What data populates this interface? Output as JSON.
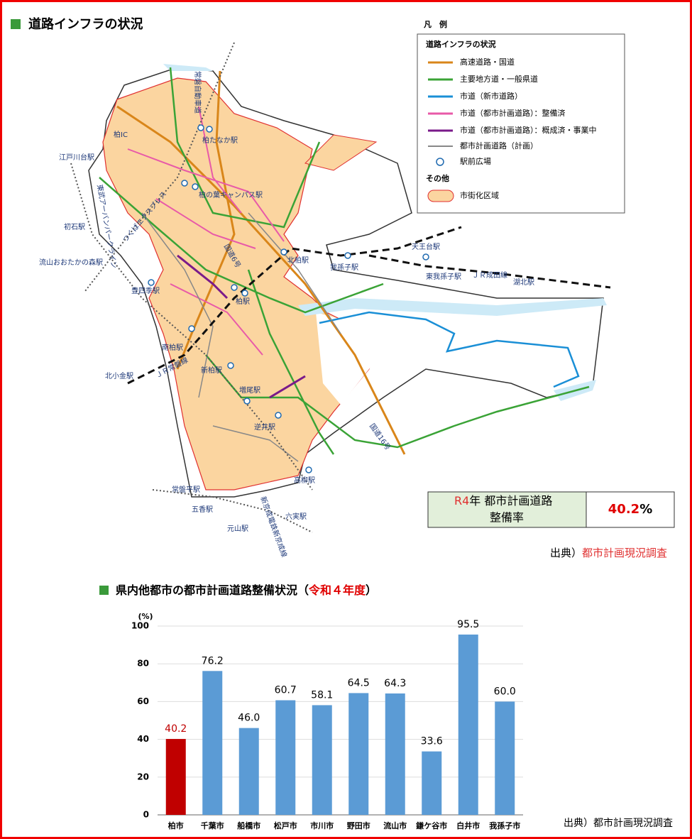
{
  "header": {
    "title": "道路インフラの状況"
  },
  "legend": {
    "title": "凡　例",
    "group1": "道路インフラの状況",
    "items": [
      "高速道路・国道",
      "主要地方道・一般県道",
      "市道（新市道路）",
      "市道（都市計画道路）：整備済",
      "市道（都市計画道路）：概成済・事業中",
      "都市計画道路（計画）",
      "駅前広場"
    ],
    "group2": "その他",
    "area": "市街化区域"
  },
  "map": {
    "labels": [
      "柏たなか駅",
      "柏の葉キャンパス駅",
      "江戸川台駅",
      "初石駅",
      "流山おおたかの森駅",
      "豊四季駅",
      "柏駅",
      "北柏駅",
      "我孫子駅",
      "天王台駅",
      "東我孫子駅",
      "湖北駅",
      "ＪＲ成田線",
      "南柏駅",
      "ＪＲ常磐線",
      "北小金駅",
      "新柏駅",
      "増尾駅",
      "逆井駅",
      "高柳駅",
      "六実駅",
      "五香駅",
      "元山駅",
      "常盤平駅",
      "国道16号",
      "柏IC",
      "常磐自動車道",
      "国道6号",
      "つくばエクスプレス",
      "東武アーバンパークライン",
      "新京成電鉄新京成線"
    ]
  },
  "info": {
    "year": "R4",
    "label1": "年 都市計画道路",
    "label2": "整備率",
    "value": "40.2",
    "unit": "%"
  },
  "source1": {
    "prefix": "出典）",
    "text": "都市計画現況調査"
  },
  "section2": {
    "title": "県内他都市の都市計画道路整備状況（",
    "highlight": "令和４年度",
    "close": "）"
  },
  "chart_data": {
    "type": "bar",
    "y_label": "(%)",
    "categories": [
      "柏市",
      "千葉市",
      "船橋市",
      "松戸市",
      "市川市",
      "野田市",
      "流山市",
      "鎌ケ谷市",
      "白井市",
      "我孫子市"
    ],
    "values": [
      40.2,
      76.2,
      46.0,
      60.7,
      58.1,
      64.5,
      64.3,
      33.6,
      95.5,
      60.0
    ],
    "value_labels": [
      "40.2",
      "76.2",
      "46.0",
      "60.7",
      "58.1",
      "64.5",
      "64.3",
      "33.6",
      "95.5",
      "60.0"
    ],
    "colors": [
      "#c00000",
      "#5b9bd5",
      "#5b9bd5",
      "#5b9bd5",
      "#5b9bd5",
      "#5b9bd5",
      "#5b9bd5",
      "#5b9bd5",
      "#5b9bd5",
      "#5b9bd5"
    ],
    "label_colors": [
      "#c00000",
      "#000000",
      "#000000",
      "#000000",
      "#000000",
      "#000000",
      "#000000",
      "#000000",
      "#000000",
      "#000000"
    ],
    "ylim": [
      0,
      100
    ],
    "yticks": [
      0,
      20,
      40,
      60,
      80,
      100
    ],
    "grid": true
  },
  "source2": "出典）都市計画現況調査"
}
